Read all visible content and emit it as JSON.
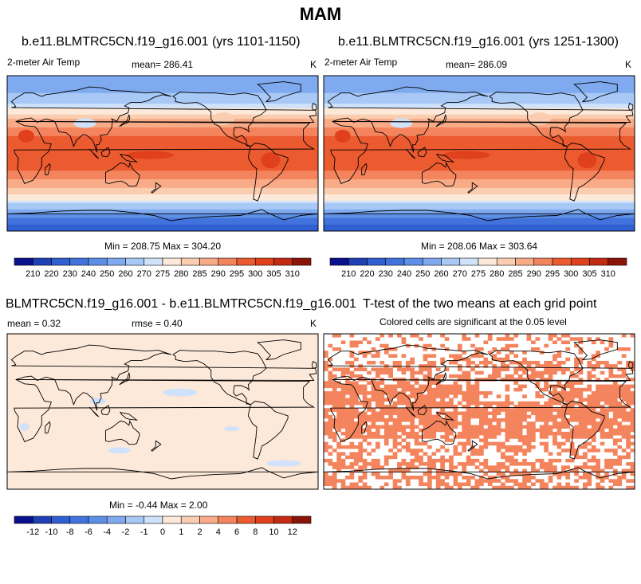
{
  "title": "MAM",
  "panels": [
    {
      "title": "b.e11.BLMTRC5CN.f19_g16.001 (yrs 1101-1150)",
      "left_label": "2-meter Air Temp",
      "mean_label": "mean= 286.41",
      "units": "K",
      "minmax": "Min = 208.75 Max = 304.20"
    },
    {
      "title": "b.e11.BLMTRC5CN.f19_g16.001 (yrs 1251-1300)",
      "left_label": "2-meter Air Temp",
      "mean_label": "mean= 286.09",
      "units": "K",
      "minmax": "Min = 208.06 Max = 303.64"
    },
    {
      "title": "BLMTRC5CN.f19_g16.001 - b.e11.BLMTRC5CN.f19_g16.001",
      "left_label": "mean =   0.32",
      "mean_label": "rmse =   0.40",
      "units": "K",
      "minmax": "Min =  -0.44 Max =   2.00"
    },
    {
      "title": "T-test of the two means at each grid point",
      "subtitle": "Colored cells are significant at the 0.05 level"
    }
  ],
  "colorbars": {
    "temperature": {
      "labels": [
        "210",
        "220",
        "230",
        "240",
        "250",
        "260",
        "270",
        "275",
        "280",
        "285",
        "290",
        "295",
        "300",
        "305",
        "310"
      ],
      "colors": [
        "#08108c",
        "#1f3fb4",
        "#2f5fd0",
        "#4273dc",
        "#5d8fe6",
        "#7faaef",
        "#a8c8f5",
        "#d0e2fa",
        "#fde9d9",
        "#fbcdb0",
        "#f8ab86",
        "#f4845d",
        "#ec5a30",
        "#e0401c",
        "#c22a12",
        "#8a1408"
      ]
    },
    "difference": {
      "labels": [
        "-12",
        "-10",
        "-8",
        "-6",
        "-4",
        "-2",
        "-1",
        "0",
        "1",
        "2",
        "4",
        "6",
        "8",
        "10",
        "12"
      ],
      "colors": [
        "#08108c",
        "#1f3fb4",
        "#2f5fd0",
        "#4273dc",
        "#5d8fe6",
        "#7faaef",
        "#a8c8f5",
        "#d0e2fa",
        "#fde9d9",
        "#fbcdb0",
        "#f8ab86",
        "#f4845d",
        "#ec5a30",
        "#e0401c",
        "#c22a12",
        "#8a1408"
      ]
    }
  },
  "chart_data": [
    {
      "type": "heatmap",
      "title": "b.e11.BLMTRC5CN.f19_g16.001 (yrs 1101-1150)",
      "variable": "2-meter Air Temp",
      "units": "K",
      "mean": 286.41,
      "min": 208.75,
      "max": 304.2,
      "zonal_bands": [
        {
          "lat": 75,
          "value": 255
        },
        {
          "lat": 55,
          "value": 272
        },
        {
          "lat": 35,
          "value": 288
        },
        {
          "lat": 15,
          "value": 298
        },
        {
          "lat": 0,
          "value": 300
        },
        {
          "lat": -15,
          "value": 298
        },
        {
          "lat": -35,
          "value": 288
        },
        {
          "lat": -55,
          "value": 275
        },
        {
          "lat": -70,
          "value": 250
        },
        {
          "lat": -85,
          "value": 225
        }
      ]
    },
    {
      "type": "heatmap",
      "title": "b.e11.BLMTRC5CN.f19_g16.001 (yrs 1251-1300)",
      "variable": "2-meter Air Temp",
      "units": "K",
      "mean": 286.09,
      "min": 208.06,
      "max": 303.64,
      "zonal_bands": [
        {
          "lat": 75,
          "value": 255
        },
        {
          "lat": 55,
          "value": 272
        },
        {
          "lat": 35,
          "value": 288
        },
        {
          "lat": 15,
          "value": 298
        },
        {
          "lat": 0,
          "value": 300
        },
        {
          "lat": -15,
          "value": 298
        },
        {
          "lat": -35,
          "value": 288
        },
        {
          "lat": -55,
          "value": 275
        },
        {
          "lat": -70,
          "value": 250
        },
        {
          "lat": -85,
          "value": 225
        }
      ]
    },
    {
      "type": "heatmap",
      "title": "BLMTRC5CN.f19_g16.001 - b.e11.BLMTRC5CN.f19_g16.001",
      "units": "K",
      "mean": 0.32,
      "rmse": 0.4,
      "min": -0.44,
      "max": 2.0,
      "zonal_bands": [
        {
          "lat": 75,
          "value": 0.9
        },
        {
          "lat": 45,
          "value": 0.4
        },
        {
          "lat": 0,
          "value": 0.3
        },
        {
          "lat": -45,
          "value": 0.3
        },
        {
          "lat": -75,
          "value": 0.5
        }
      ]
    },
    {
      "type": "heatmap",
      "title": "T-test of the two means at each grid point",
      "subtitle": "Colored cells are significant at the 0.05 level",
      "significance_level": 0.05
    }
  ]
}
